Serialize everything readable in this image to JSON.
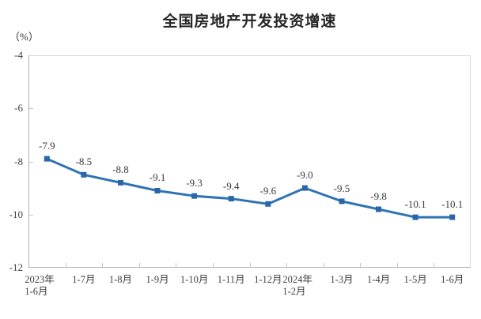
{
  "chart_data": {
    "type": "line",
    "title": "全国房地产开发投资增速",
    "unit_label": "（%）",
    "categories": [
      "2023年1-6月",
      "1-7月",
      "1-8月",
      "1-9月",
      "1-10月",
      "1-11月",
      "1-12月",
      "2024年1-2月",
      "1-3月",
      "1-4月",
      "1-5月",
      "1-6月"
    ],
    "category_display": [
      [
        "2023年",
        "1-6月"
      ],
      [
        "1-7月"
      ],
      [
        "1-8月"
      ],
      [
        "1-9月"
      ],
      [
        "1-10月"
      ],
      [
        "1-11月"
      ],
      [
        "1-12月"
      ],
      [
        "2024年",
        "1-2月"
      ],
      [
        "1-3月"
      ],
      [
        "1-4月"
      ],
      [
        "1-5月"
      ],
      [
        "1-6月"
      ]
    ],
    "series": [
      {
        "name": "全国房地产开发投资增速",
        "values": [
          -7.9,
          -8.5,
          -8.8,
          -9.1,
          -9.3,
          -9.4,
          -9.6,
          -9.0,
          -9.5,
          -9.8,
          -10.1,
          -10.1
        ]
      }
    ],
    "data_labels": [
      "-7.9",
      "-8.5",
      "-8.8",
      "-9.1",
      "-9.3",
      "-9.4",
      "-9.6",
      "-9.0",
      "-9.5",
      "-9.8",
      "-10.1",
      "-10.1"
    ],
    "xlabel": "",
    "ylabel": "（%）",
    "ylim": [
      -12,
      -4
    ],
    "y_ticks": [
      "-4",
      "-6",
      "-8",
      "-10",
      "-12"
    ],
    "grid": false,
    "legend": "none",
    "colors": {
      "line": "#2E74B5",
      "marker": "#2A66A9",
      "axis": "#ADADAD",
      "plot_border": "#D9D9D9",
      "tick": "#C4C4C4",
      "label": "#3F3F3F",
      "title": "#262626"
    }
  }
}
